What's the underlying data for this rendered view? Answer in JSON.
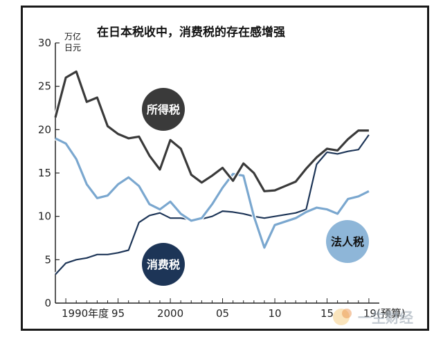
{
  "chart_data": {
    "type": "line",
    "title": "在日本税收中，消费税的存在感增强",
    "ylabel": "万亿日元",
    "ylim": [
      0,
      30
    ],
    "yticks": [
      0,
      5,
      10,
      15,
      20,
      25,
      30
    ],
    "xlim": [
      1989,
      2020
    ],
    "xticks": [
      {
        "value": 1990,
        "label": "1990年度"
      },
      {
        "value": 1995,
        "label": "95"
      },
      {
        "value": 2000,
        "label": "2000"
      },
      {
        "value": 2005,
        "label": "05"
      },
      {
        "value": 2010,
        "label": "10"
      },
      {
        "value": 2015,
        "label": "15"
      },
      {
        "value": 2019,
        "label": "19(预算)"
      }
    ],
    "x": [
      1989,
      1990,
      1991,
      1992,
      1993,
      1994,
      1995,
      1996,
      1997,
      1998,
      1999,
      2000,
      2001,
      2002,
      2003,
      2004,
      2005,
      2006,
      2007,
      2008,
      2009,
      2010,
      2011,
      2012,
      2013,
      2014,
      2015,
      2016,
      2017,
      2018,
      2019
    ],
    "series": [
      {
        "name": "所得税",
        "color": "#3a3a3a",
        "values": [
          21.4,
          26.0,
          26.7,
          23.2,
          23.7,
          20.4,
          19.5,
          19.0,
          19.2,
          17.0,
          15.4,
          18.8,
          17.8,
          14.8,
          13.9,
          14.7,
          15.6,
          14.1,
          16.1,
          15.0,
          12.9,
          13.0,
          13.5,
          14.0,
          15.5,
          16.8,
          17.8,
          17.6,
          18.9,
          19.9,
          19.9
        ]
      },
      {
        "name": "法人税",
        "color": "#7aa7cf",
        "values": [
          19.0,
          18.4,
          16.6,
          13.7,
          12.1,
          12.4,
          13.7,
          14.5,
          13.5,
          11.4,
          10.8,
          11.7,
          10.3,
          9.5,
          9.8,
          11.4,
          13.3,
          14.9,
          14.7,
          10.0,
          6.4,
          9.0,
          9.4,
          9.8,
          10.5,
          11.0,
          10.8,
          10.3,
          12.0,
          12.3,
          12.9
        ]
      },
      {
        "name": "消费税",
        "color": "#1d3557",
        "values": [
          3.3,
          4.6,
          5.0,
          5.2,
          5.6,
          5.6,
          5.8,
          6.1,
          9.3,
          10.1,
          10.4,
          9.8,
          9.8,
          9.6,
          9.7,
          10.0,
          10.6,
          10.5,
          10.3,
          10.0,
          9.8,
          10.0,
          10.2,
          10.4,
          10.8,
          16.0,
          17.4,
          17.2,
          17.5,
          17.7,
          19.4
        ]
      }
    ],
    "labels": [
      {
        "series": "所得税",
        "text": "所得税"
      },
      {
        "series": "消费税",
        "text": "消费税"
      },
      {
        "series": "法人税",
        "text": "法人税"
      }
    ],
    "grid": false
  },
  "watermark": "一生财经"
}
